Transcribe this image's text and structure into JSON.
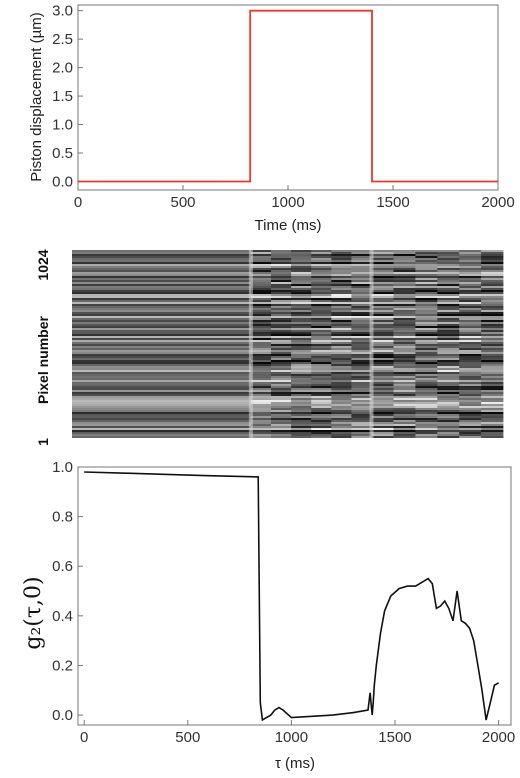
{
  "chart_data": [
    {
      "type": "line",
      "xlabel": "Time (ms)",
      "ylabel": "Piston displacement (µm)",
      "xlim": [
        0,
        2000
      ],
      "ylim": [
        -0.15,
        3.1
      ],
      "x_ticks": [
        "0",
        "500",
        "1000",
        "1500",
        "2000"
      ],
      "y_ticks": [
        "0.0",
        "0.5",
        "1.0",
        "1.5",
        "2.0",
        "2.5",
        "3.0"
      ],
      "grid": false,
      "series": [
        {
          "color": "#e8392e",
          "x": [
            0,
            820,
            820,
            1400,
            1400,
            2000
          ],
          "y": [
            0,
            0,
            3.0,
            3.0,
            0,
            0
          ]
        }
      ]
    },
    {
      "type": "heatmap",
      "ylabel": "Pixel number",
      "y_ticks": [
        "1",
        "1024"
      ],
      "x_range_ms": [
        0,
        2000
      ],
      "segments_ms": [
        0,
        830,
        1390,
        2000
      ],
      "colormap": "grayscale"
    },
    {
      "type": "line",
      "xlabel": "τ (ms)",
      "ylabel": "g₂(τ,0)",
      "xlim": [
        -30,
        2060
      ],
      "ylim": [
        -0.04,
        1.0
      ],
      "x_ticks": [
        "0",
        "500",
        "1000",
        "1500",
        "2000"
      ],
      "y_ticks": [
        "0.0",
        "0.2",
        "0.4",
        "0.6",
        "0.8",
        "1.0"
      ],
      "grid": false,
      "series": [
        {
          "color": "#111111",
          "x": [
            0,
            200,
            400,
            600,
            840,
            850,
            860,
            880,
            900,
            920,
            940,
            960,
            1000,
            1100,
            1200,
            1300,
            1370,
            1380,
            1390,
            1395,
            1400,
            1410,
            1430,
            1450,
            1480,
            1520,
            1560,
            1600,
            1640,
            1660,
            1680,
            1700,
            1720,
            1740,
            1760,
            1780,
            1800,
            1810,
            1820,
            1840,
            1860,
            1880,
            1900,
            1920,
            1940,
            1960,
            1980,
            2000
          ],
          "y": [
            0.98,
            0.975,
            0.97,
            0.965,
            0.96,
            0.05,
            -0.02,
            -0.01,
            0.0,
            0.02,
            0.03,
            0.02,
            -0.01,
            -0.005,
            0.0,
            0.01,
            0.02,
            0.09,
            0.0,
            0.05,
            0.12,
            0.2,
            0.33,
            0.42,
            0.48,
            0.51,
            0.52,
            0.52,
            0.54,
            0.55,
            0.53,
            0.43,
            0.44,
            0.46,
            0.43,
            0.38,
            0.5,
            0.44,
            0.38,
            0.37,
            0.35,
            0.3,
            0.2,
            0.1,
            -0.02,
            0.05,
            0.12,
            0.13
          ]
        }
      ]
    }
  ]
}
